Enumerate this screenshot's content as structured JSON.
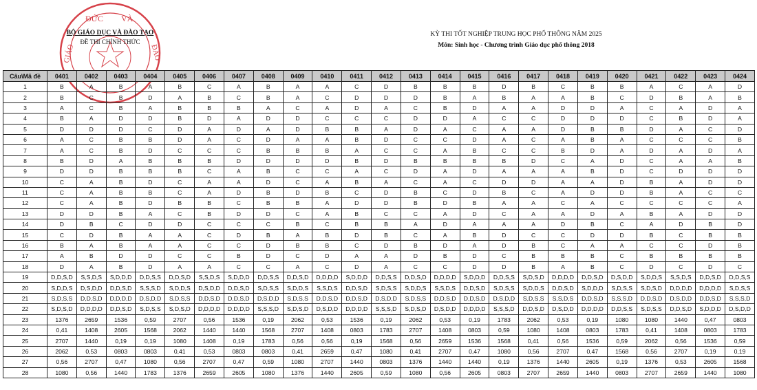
{
  "header": {
    "ministry": "BỘ GIÁO DỤC VÀ ĐÀO TẠO",
    "official": "ĐỀ THI CHÍNH THỨC",
    "exam_title": "KỲ THI TỐT NGHIỆP TRUNG HỌC PHỔ THÔNG NĂM 2025",
    "subject": "Môn: Sinh học - Chương trình Giáo dục phổ thông 2018"
  },
  "stamp": {
    "text": "BỘ GIÁO DỤC VÀ ĐÀO TẠO",
    "color": "#d0202a"
  },
  "table": {
    "corner": "Câu\\Mã đề",
    "columns": [
      "0401",
      "0402",
      "0403",
      "0404",
      "0405",
      "0406",
      "0407",
      "0408",
      "0409",
      "0410",
      "0411",
      "0412",
      "0413",
      "0414",
      "0415",
      "0416",
      "0417",
      "0418",
      "0419",
      "0420",
      "0421",
      "0422",
      "0423",
      "0424"
    ],
    "header_bg": "#c9c9c9",
    "rows": [
      {
        "q": "1",
        "answers": [
          "B",
          "A",
          "B",
          "A",
          "B",
          "C",
          "A",
          "B",
          "A",
          "A",
          "C",
          "D",
          "B",
          "B",
          "B",
          "D",
          "B",
          "C",
          "B",
          "B",
          "A",
          "C",
          "A",
          "D"
        ]
      },
      {
        "q": "2",
        "answers": [
          "B",
          "C",
          "B",
          "D",
          "A",
          "B",
          "C",
          "B",
          "A",
          "C",
          "D",
          "D",
          "D",
          "B",
          "A",
          "B",
          "A",
          "A",
          "B",
          "C",
          "D",
          "B",
          "A",
          "B"
        ]
      },
      {
        "q": "3",
        "answers": [
          "A",
          "C",
          "B",
          "A",
          "B",
          "B",
          "B",
          "A",
          "C",
          "A",
          "D",
          "A",
          "C",
          "B",
          "D",
          "A",
          "A",
          "D",
          "D",
          "A",
          "C",
          "A",
          "D",
          "A"
        ]
      },
      {
        "q": "4",
        "answers": [
          "B",
          "A",
          "D",
          "D",
          "B",
          "D",
          "A",
          "D",
          "D",
          "C",
          "C",
          "C",
          "D",
          "D",
          "A",
          "C",
          "C",
          "D",
          "D",
          "D",
          "C",
          "B",
          "D",
          "A"
        ]
      },
      {
        "q": "5",
        "answers": [
          "D",
          "D",
          "D",
          "C",
          "D",
          "A",
          "D",
          "A",
          "D",
          "B",
          "B",
          "A",
          "D",
          "A",
          "C",
          "A",
          "A",
          "D",
          "B",
          "B",
          "D",
          "A",
          "C",
          "D"
        ]
      },
      {
        "q": "6",
        "answers": [
          "A",
          "C",
          "B",
          "B",
          "D",
          "A",
          "C",
          "D",
          "A",
          "A",
          "B",
          "D",
          "C",
          "C",
          "D",
          "A",
          "C",
          "A",
          "B",
          "A",
          "C",
          "C",
          "C",
          "B"
        ]
      },
      {
        "q": "7",
        "answers": [
          "A",
          "C",
          "B",
          "D",
          "C",
          "C",
          "C",
          "B",
          "B",
          "B",
          "A",
          "C",
          "C",
          "A",
          "B",
          "C",
          "C",
          "B",
          "D",
          "A",
          "D",
          "A",
          "D",
          "A"
        ]
      },
      {
        "q": "8",
        "answers": [
          "B",
          "D",
          "A",
          "B",
          "B",
          "B",
          "D",
          "D",
          "D",
          "D",
          "B",
          "D",
          "B",
          "B",
          "B",
          "B",
          "D",
          "C",
          "A",
          "D",
          "C",
          "A",
          "A",
          "B"
        ]
      },
      {
        "q": "9",
        "answers": [
          "D",
          "D",
          "B",
          "B",
          "B",
          "C",
          "A",
          "B",
          "C",
          "C",
          "A",
          "C",
          "D",
          "A",
          "D",
          "A",
          "A",
          "A",
          "B",
          "D",
          "C",
          "D",
          "D",
          "D"
        ]
      },
      {
        "q": "10",
        "answers": [
          "C",
          "A",
          "B",
          "D",
          "C",
          "A",
          "A",
          "D",
          "C",
          "A",
          "B",
          "A",
          "C",
          "A",
          "C",
          "D",
          "D",
          "A",
          "A",
          "D",
          "B",
          "A",
          "D",
          "D"
        ]
      },
      {
        "q": "11",
        "answers": [
          "C",
          "A",
          "B",
          "B",
          "C",
          "A",
          "D",
          "B",
          "D",
          "B",
          "C",
          "D",
          "B",
          "C",
          "D",
          "B",
          "C",
          "A",
          "D",
          "D",
          "B",
          "A",
          "C",
          "C"
        ]
      },
      {
        "q": "12",
        "answers": [
          "C",
          "A",
          "B",
          "D",
          "B",
          "B",
          "C",
          "B",
          "B",
          "A",
          "D",
          "D",
          "B",
          "D",
          "B",
          "A",
          "A",
          "C",
          "A",
          "C",
          "C",
          "C",
          "C",
          "A"
        ]
      },
      {
        "q": "13",
        "answers": [
          "D",
          "D",
          "B",
          "A",
          "C",
          "B",
          "D",
          "D",
          "C",
          "A",
          "B",
          "C",
          "C",
          "A",
          "D",
          "C",
          "A",
          "A",
          "D",
          "A",
          "B",
          "A",
          "D",
          "D"
        ]
      },
      {
        "q": "14",
        "answers": [
          "D",
          "B",
          "C",
          "D",
          "D",
          "C",
          "C",
          "C",
          "B",
          "C",
          "B",
          "B",
          "A",
          "D",
          "A",
          "A",
          "A",
          "D",
          "B",
          "C",
          "A",
          "D",
          "B",
          "D"
        ]
      },
      {
        "q": "15",
        "answers": [
          "C",
          "D",
          "B",
          "A",
          "A",
          "C",
          "D",
          "B",
          "A",
          "B",
          "D",
          "B",
          "C",
          "A",
          "B",
          "D",
          "C",
          "C",
          "D",
          "D",
          "B",
          "C",
          "B",
          "B"
        ]
      },
      {
        "q": "16",
        "answers": [
          "B",
          "A",
          "B",
          "A",
          "A",
          "C",
          "C",
          "D",
          "B",
          "B",
          "C",
          "D",
          "B",
          "D",
          "A",
          "D",
          "B",
          "C",
          "A",
          "A",
          "C",
          "C",
          "D",
          "B"
        ]
      },
      {
        "q": "17",
        "answers": [
          "A",
          "B",
          "D",
          "D",
          "C",
          "C",
          "B",
          "D",
          "C",
          "D",
          "A",
          "A",
          "D",
          "B",
          "D",
          "C",
          "B",
          "B",
          "B",
          "C",
          "B",
          "B",
          "B",
          "B"
        ]
      },
      {
        "q": "18",
        "answers": [
          "D",
          "A",
          "B",
          "D",
          "A",
          "A",
          "C",
          "C",
          "A",
          "C",
          "D",
          "A",
          "C",
          "C",
          "D",
          "D",
          "B",
          "A",
          "B",
          "C",
          "D",
          "C",
          "D",
          "C"
        ]
      },
      {
        "q": "19",
        "answers": [
          "D,D,S,D",
          "S,S,D,S",
          "S,D,D,D",
          "D,D,S,S",
          "D,D,S,D",
          "S,S,D,S",
          "S,D,D,D",
          "D,D,S,S",
          "D,D,S,D",
          "D,D,D,D",
          "S,D,D,D",
          "D,D,S,S",
          "D,D,S,D",
          "D,D,D,D",
          "S,D,D,D",
          "D,D,S,S",
          "S,D,S,D",
          "D,D,D,D",
          "D,D,S,D",
          "D,S,D,D",
          "S,D,D,S",
          "S,S,D,S",
          "D,D,S,D",
          "D,D,S,S"
        ]
      },
      {
        "q": "20",
        "answers": [
          "S,D,D,S",
          "D,S,D,D",
          "D,D,S,D",
          "S,S,S,D",
          "S,D,D,S",
          "D,S,D,D",
          "D,D,S,D",
          "S,D,S,S",
          "S,D,D,S",
          "S,S,D,S",
          "D,D,S,D",
          "S,D,S,S",
          "S,D,D,S",
          "S,S,D,S",
          "D,D,S,D",
          "S,D,S,S",
          "S,D,D,S",
          "D,D,S,D",
          "S,D,D,D",
          "S,D,S,S",
          "S,D,S,D",
          "D,D,D,D",
          "D,D,D,D",
          "S,D,S,S"
        ]
      },
      {
        "q": "21",
        "answers": [
          "S,D,S,S",
          "D,D,S,D",
          "D,D,D,D",
          "D,S,D,D",
          "S,D,S,S",
          "D,D,S,D",
          "D,D,S,D",
          "D,S,D,D",
          "S,D,S,S",
          "D,D,S,D",
          "D,D,S,D",
          "D,S,D,D",
          "S,D,S,S",
          "D,D,S,D",
          "D,D,S,D",
          "D,S,D,D",
          "S,D,S,S",
          "S,S,D,S",
          "D,D,S,D",
          "S,S,S,D",
          "D,D,S,D",
          "D,S,D,D",
          "D,D,S,D",
          "S,S,S,D"
        ]
      },
      {
        "q": "22",
        "answers": [
          "S,D,S,D",
          "D,D,D,D",
          "D,D,S,D",
          "S,D,S,S",
          "S,D,S,D",
          "D,D,D,D",
          "D,D,D,D",
          "S,S,S,D",
          "S,D,S,D",
          "D,S,D,D",
          "D,D,D,D",
          "S,S,S,D",
          "S,D,S,D",
          "D,S,D,D",
          "D,D,D,D",
          "S,S,S,D",
          "D,D,S,D",
          "D,S,D,D",
          "D,D,D,D",
          "D,D,S,S",
          "S,D,S,S",
          "D,D,S,D",
          "S,D,D,D",
          "D,S,D,D"
        ]
      },
      {
        "q": "23",
        "answers": [
          "1376",
          "2659",
          "1536",
          "0,59",
          "2707",
          "0,56",
          "1536",
          "0,19",
          "2062",
          "0,53",
          "1536",
          "0,19",
          "2062",
          "0,53",
          "0,19",
          "1783",
          "2062",
          "0,53",
          "0,19",
          "1080",
          "1080",
          "1440",
          "0,47",
          "0803"
        ]
      },
      {
        "q": "24",
        "answers": [
          "0,41",
          "1408",
          "2605",
          "1568",
          "2062",
          "1440",
          "1440",
          "1568",
          "2707",
          "1408",
          "0803",
          "1783",
          "2707",
          "1408",
          "0803",
          "0,59",
          "1080",
          "1408",
          "0803",
          "1783",
          "0,41",
          "1408",
          "0803",
          "1783"
        ]
      },
      {
        "q": "25",
        "answers": [
          "2707",
          "1440",
          "0,19",
          "0,19",
          "1080",
          "1408",
          "0,19",
          "1783",
          "0,56",
          "0,56",
          "0,19",
          "1568",
          "0,56",
          "2659",
          "1536",
          "1568",
          "0,41",
          "0,56",
          "1536",
          "0,59",
          "2062",
          "0,56",
          "1536",
          "0,59"
        ]
      },
      {
        "q": "26",
        "answers": [
          "2062",
          "0,53",
          "0803",
          "0803",
          "0,41",
          "0,53",
          "0803",
          "0803",
          "0,41",
          "2659",
          "0,47",
          "1080",
          "0,41",
          "2707",
          "0,47",
          "1080",
          "0,56",
          "2707",
          "0,47",
          "1568",
          "0,56",
          "2707",
          "0,19",
          "0,19"
        ]
      },
      {
        "q": "27",
        "answers": [
          "0,56",
          "2707",
          "0,47",
          "1080",
          "0,56",
          "2707",
          "0,47",
          "0,59",
          "1080",
          "2707",
          "1440",
          "0803",
          "1376",
          "1440",
          "1440",
          "0,19",
          "1376",
          "1440",
          "2605",
          "0,19",
          "1376",
          "0,53",
          "2605",
          "1568"
        ]
      },
      {
        "q": "28",
        "answers": [
          "1080",
          "0,56",
          "1440",
          "1783",
          "1376",
          "2659",
          "2605",
          "1080",
          "1376",
          "1440",
          "2605",
          "0,59",
          "1080",
          "0,56",
          "2605",
          "0803",
          "2707",
          "2659",
          "1440",
          "0803",
          "2707",
          "2659",
          "1440",
          "1080"
        ]
      }
    ]
  }
}
